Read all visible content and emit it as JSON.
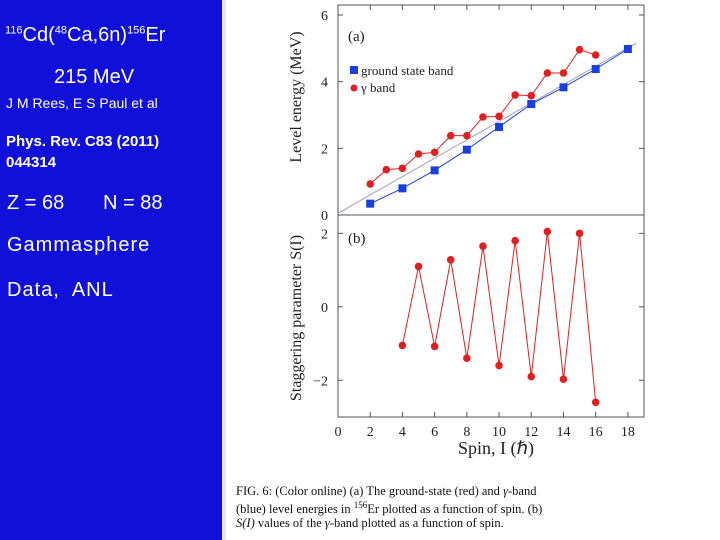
{
  "slide": {
    "reaction": {
      "target_mass": "116",
      "target": "Cd(",
      "beam_mass": "48",
      "beam": "Ca,6n)",
      "product_mass": "156",
      "product": "Er"
    },
    "energy": "215 MeV",
    "authors": "J M Rees, E S Paul et al",
    "reference_line1": "Phys. Rev. C83 (2011)",
    "reference_line2": "044314",
    "z": "Z = 68",
    "n": "N = 88",
    "instrument": "Gammasphere",
    "data_source": "Data,  ANL"
  },
  "colors": {
    "left_background": "#1010d8",
    "ground_band": "#1a3ee0",
    "gamma_band": "#e02020",
    "guide_line": "#9aa0c0"
  },
  "caption": {
    "line1_a": "FIG. 6: (Color online) (a) The ground-state (red) and ",
    "gamma": "γ",
    "line1_b": "-band",
    "line2_a": "(blue) level energies in ",
    "line2_mass": "156",
    "line2_b": "Er plotted as a function of spin. (b)",
    "line3_a": "S(I)",
    "line3_b": " values of the ",
    "line3_c": "-band plotted as a function of spin."
  },
  "chart_data": [
    {
      "type": "line",
      "panel_label": "(a)",
      "ylabel": "Level energy (MeV)",
      "ylim": [
        0,
        6
      ],
      "y_ticks": [
        0,
        2,
        4,
        6
      ],
      "xlim": [
        0,
        19
      ],
      "legend_position": "upper-left",
      "series": [
        {
          "name": "ground state band",
          "marker": "square",
          "x": [
            2,
            4,
            6,
            8,
            10,
            12,
            14,
            16,
            18
          ],
          "y": [
            0.34,
            0.8,
            1.34,
            1.96,
            2.64,
            3.33,
            3.83,
            4.38,
            4.98
          ]
        },
        {
          "name": "γ band",
          "marker": "circle",
          "x": [
            2,
            3,
            4,
            5,
            6,
            7,
            8,
            9,
            10,
            11,
            12,
            13,
            14,
            15,
            16
          ],
          "y": [
            0.93,
            1.36,
            1.4,
            1.83,
            1.88,
            2.38,
            2.38,
            2.94,
            2.96,
            3.6,
            3.58,
            4.26,
            4.26,
            4.96,
            4.8
          ]
        }
      ],
      "guide_line": {
        "x": [
          0,
          18.5
        ],
        "y": [
          0.05,
          5.15
        ]
      }
    },
    {
      "type": "line",
      "panel_label": "(b)",
      "ylabel": "Staggering parameter S(I)",
      "xlabel": "Spin, I (ℏ)",
      "ylim": [
        -3,
        2.5
      ],
      "y_ticks": [
        -2,
        0,
        2
      ],
      "y_tick_labels": [
        "−2",
        "0",
        "2"
      ],
      "xlim": [
        0,
        19
      ],
      "x_ticks": [
        0,
        2,
        4,
        6,
        8,
        10,
        12,
        14,
        16,
        18
      ],
      "series": [
        {
          "marker": "circle",
          "x": [
            4,
            5,
            6,
            7,
            8,
            9,
            10,
            11,
            12,
            13,
            14,
            15,
            16
          ],
          "y": [
            -1.05,
            1.1,
            -1.08,
            1.28,
            -1.4,
            1.65,
            -1.6,
            1.8,
            -1.9,
            2.05,
            -1.97,
            2.0,
            -2.6
          ]
        }
      ]
    }
  ]
}
